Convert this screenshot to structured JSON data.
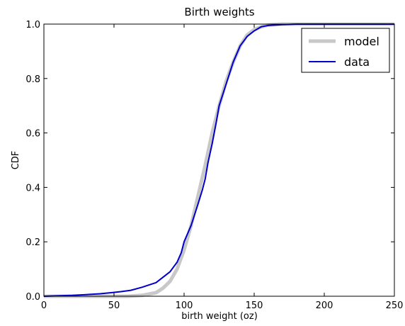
{
  "chart_data": {
    "type": "line",
    "title": "Birth weights",
    "xlabel": "birth weight (oz)",
    "ylabel": "CDF",
    "xlim": [
      0,
      250
    ],
    "ylim": [
      0,
      1.0
    ],
    "x_ticks": [
      0,
      50,
      100,
      150,
      200,
      250
    ],
    "y_ticks": [
      0.0,
      0.2,
      0.4,
      0.6,
      0.8,
      1.0
    ],
    "x_tick_labels": [
      "0",
      "50",
      "100",
      "150",
      "200",
      "250"
    ],
    "y_tick_labels": [
      "0.0",
      "0.2",
      "0.4",
      "0.6",
      "0.8",
      "1.0"
    ],
    "grid": false,
    "legend_position": "top-right",
    "series": [
      {
        "name": "model",
        "color": "#c8c8c8",
        "x": [
          0,
          60,
          70,
          80,
          85,
          90,
          95,
          100,
          105,
          110,
          115,
          120,
          125,
          130,
          135,
          140,
          145,
          150,
          155,
          160,
          170,
          180,
          250
        ],
        "y": [
          0.0,
          0.0,
          0.003,
          0.013,
          0.03,
          0.055,
          0.1,
          0.17,
          0.26,
          0.37,
          0.48,
          0.6,
          0.7,
          0.79,
          0.86,
          0.92,
          0.96,
          0.98,
          0.99,
          0.997,
          1.0,
          1.0,
          1.0
        ]
      },
      {
        "name": "data",
        "color": "#0000cc",
        "x": [
          0,
          20,
          30,
          40,
          48,
          55,
          62,
          70,
          80,
          90,
          95,
          98,
          100,
          105,
          110,
          113,
          115,
          117,
          120,
          123,
          125,
          130,
          135,
          140,
          145,
          150,
          155,
          160,
          170,
          180,
          250
        ],
        "y": [
          0.0,
          0.003,
          0.006,
          0.009,
          0.013,
          0.017,
          0.022,
          0.033,
          0.05,
          0.09,
          0.125,
          0.16,
          0.2,
          0.26,
          0.34,
          0.39,
          0.43,
          0.49,
          0.56,
          0.64,
          0.7,
          0.78,
          0.86,
          0.92,
          0.955,
          0.975,
          0.99,
          0.995,
          0.998,
          1.0,
          1.0
        ]
      }
    ]
  }
}
